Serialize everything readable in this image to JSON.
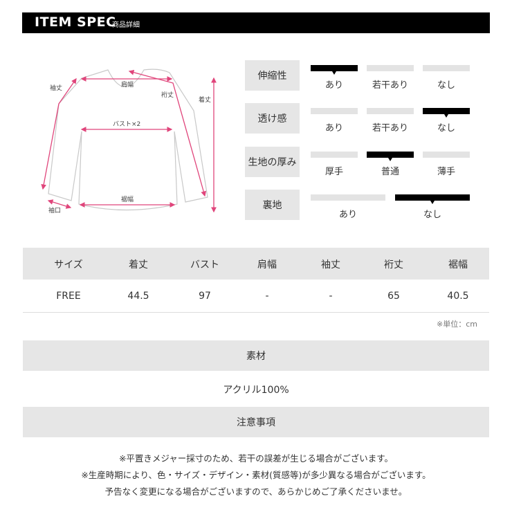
{
  "header": {
    "title": "ITEM SPEC",
    "subtitle": "商品詳細"
  },
  "diagram": {
    "labels": {
      "sleeve": "袖丈",
      "shoulder": "肩幅",
      "yuki": "裄丈",
      "length": "着丈",
      "bust": "バスト×2",
      "hem": "裾幅",
      "cuff": "袖口"
    },
    "accent": "#e0457b"
  },
  "spec": [
    {
      "label": "伸縮性",
      "options": [
        "あり",
        "若干あり",
        "なし"
      ],
      "selected": 0
    },
    {
      "label": "透け感",
      "options": [
        "あり",
        "若干あり",
        "なし"
      ],
      "selected": 2
    },
    {
      "label": "生地の厚み",
      "options": [
        "厚手",
        "普通",
        "薄手"
      ],
      "selected": 1
    },
    {
      "label": "裏地",
      "options": [
        "あり",
        "なし"
      ],
      "selected": 1
    }
  ],
  "size_table": {
    "headers": [
      "サイズ",
      "着丈",
      "バスト",
      "肩幅",
      "袖丈",
      "裄丈",
      "裾幅"
    ],
    "rows": [
      [
        "FREE",
        "44.5",
        "97",
        "-",
        "-",
        "65",
        "40.5"
      ]
    ],
    "unit_note": "※単位：cm"
  },
  "material": {
    "label": "素材",
    "value": "アクリル100%"
  },
  "notes": {
    "label": "注意事項",
    "lines": [
      "※平置きメジャー採寸のため、若干の誤差が生じる場合がございます。",
      "※生産時期により、色・サイズ・デザイン・素材(質感等)が多少異なる場合がございます。",
      "予告なく変更になる場合がございますので、あらかじめご了承くださいませ。"
    ]
  }
}
